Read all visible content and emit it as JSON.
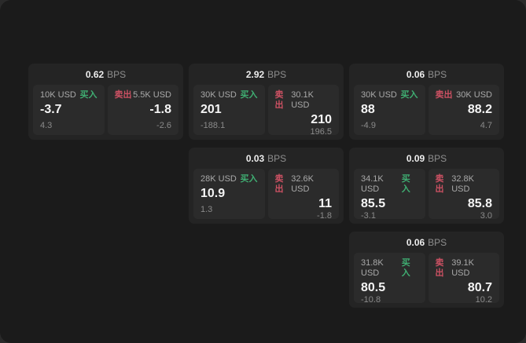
{
  "labels": {
    "bps_unit": "BPS",
    "buy": "买入",
    "sell": "卖出"
  },
  "colors": {
    "buy_green": "#3fae72",
    "sell_red": "#cc5163",
    "screen_bg": "#1b1b1b",
    "card_bg": "#242424",
    "panel_bg": "#2b2b2b"
  },
  "cards": [
    {
      "bps": "0.62",
      "buy": {
        "size": "10K USD",
        "price": "-3.7",
        "sub": "4.3"
      },
      "sell": {
        "size": "5.5K USD",
        "price": "-1.8",
        "sub": "-2.6"
      }
    },
    {
      "bps": "2.92",
      "buy": {
        "size": "30K USD",
        "price": "201",
        "sub": "-188.1"
      },
      "sell": {
        "size": "30.1K USD",
        "price": "210",
        "sub": "196.5"
      }
    },
    {
      "bps": "0.06",
      "buy": {
        "size": "30K USD",
        "price": "88",
        "sub": "-4.9"
      },
      "sell": {
        "size": "30K USD",
        "price": "88.2",
        "sub": "4.7"
      }
    },
    {
      "bps": "0.03",
      "buy": {
        "size": "28K USD",
        "price": "10.9",
        "sub": "1.3"
      },
      "sell": {
        "size": "32.6K USD",
        "price": "11",
        "sub": "-1.8"
      }
    },
    {
      "bps": "0.09",
      "buy": {
        "size": "34.1K USD",
        "price": "85.5",
        "sub": "-3.1"
      },
      "sell": {
        "size": "32.8K USD",
        "price": "85.8",
        "sub": "3.0"
      }
    },
    {
      "bps": "0.06",
      "buy": {
        "size": "31.8K USD",
        "price": "80.5",
        "sub": "-10.8"
      },
      "sell": {
        "size": "39.1K USD",
        "price": "80.7",
        "sub": "10.2"
      }
    }
  ]
}
